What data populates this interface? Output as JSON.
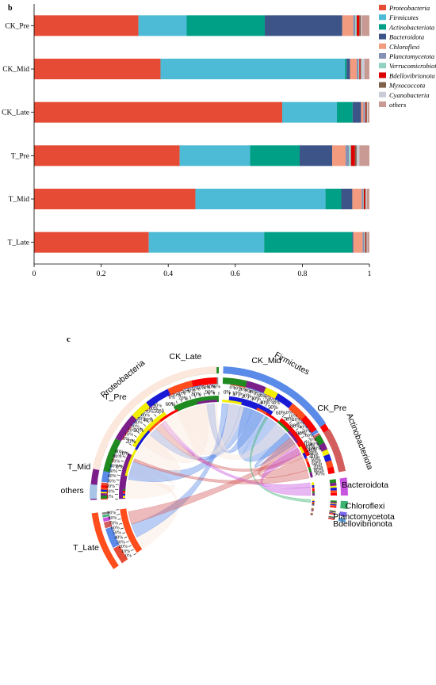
{
  "chart_data": [
    {
      "panel_label": "b",
      "type": "bar",
      "orientation": "horizontal",
      "stacked": true,
      "categories": [
        "CK_Pre",
        "CK_Mid",
        "CK_Late",
        "T_Pre",
        "T_Mid",
        "T_Late"
      ],
      "xlim": [
        0,
        1
      ],
      "xticks": [
        "0",
        "0.2",
        "0.4",
        "0.6",
        "0.8",
        "1"
      ],
      "grid": false,
      "legend_position": "right",
      "series": [
        {
          "name": "Proteobacteria",
          "color": "#e64b35",
          "values": [
            0.311,
            0.377,
            0.74,
            0.434,
            0.481,
            0.342
          ]
        },
        {
          "name": "Firmicutes",
          "color": "#4dbbd5",
          "values": [
            0.144,
            0.55,
            0.163,
            0.21,
            0.388,
            0.344
          ]
        },
        {
          "name": "Actinobacteriota",
          "color": "#00a087",
          "values": [
            0.233,
            0.005,
            0.047,
            0.148,
            0.047,
            0.263
          ]
        },
        {
          "name": "Bacteroidota",
          "color": "#3c5488",
          "values": [
            0.231,
            0.01,
            0.025,
            0.097,
            0.033,
            0.003
          ]
        },
        {
          "name": "Chloroflexi",
          "color": "#f39b7f",
          "values": [
            0.033,
            0.02,
            0.007,
            0.04,
            0.028,
            0.028
          ]
        },
        {
          "name": "Planctomycetota",
          "color": "#8491b4",
          "values": [
            0.006,
            0.005,
            0.004,
            0.01,
            0.004,
            0.004
          ]
        },
        {
          "name": "Verrucomicrobiota",
          "color": "#91d1c2",
          "values": [
            0.004,
            0.003,
            0.002,
            0.006,
            0.002,
            0.003
          ]
        },
        {
          "name": "Bdellovibrionota",
          "color": "#dc0000",
          "values": [
            0.008,
            0.003,
            0.003,
            0.012,
            0.004,
            0.003
          ]
        },
        {
          "name": "Myxococcota",
          "color": "#7e6148",
          "values": [
            0.004,
            0.002,
            0.002,
            0.005,
            0.002,
            0.002
          ]
        },
        {
          "name": "Cyanobacteria",
          "color": "#c9ccd6",
          "values": [
            0.003,
            0.01,
            0.002,
            0.008,
            0.003,
            0.002
          ]
        },
        {
          "name": "others",
          "color": "#c89a93",
          "values": [
            0.023,
            0.015,
            0.005,
            0.03,
            0.008,
            0.006
          ]
        }
      ]
    },
    {
      "panel_label": "c",
      "type": "chord",
      "sample_sectors": [
        {
          "name": "T_Late",
          "color": "#ff4d1c",
          "start": 235,
          "end": 262
        },
        {
          "name": "T_Mid",
          "color": "#7b1e8a",
          "start": 268,
          "end": 295
        },
        {
          "name": "T_Pre",
          "color": "#f2ee00",
          "start": 300,
          "end": 327
        },
        {
          "name": "CK_Late",
          "color": "#1f8a1f",
          "start": 333,
          "end": 360
        },
        {
          "name": "CK_Mid",
          "color": "#1a1ad6",
          "start": 366,
          "end": 393
        },
        {
          "name": "CK_Pre",
          "color": "#ff0000",
          "start": 399,
          "end": 426
        }
      ],
      "phylum_sectors": [
        {
          "name": "others",
          "color": "#a8c4e6",
          "start": 268.5,
          "end": 275
        },
        {
          "name": "Proteobacteria",
          "color": "#fbe7dc",
          "start": 282,
          "end": 359
        },
        {
          "name": "Firmicutes",
          "color": "#5b8be8",
          "start": 2,
          "end": 56
        },
        {
          "name": "Actinobacteriota",
          "color": "#d35c5c",
          "start": 59,
          "end": 79
        },
        {
          "name": "Bacteroidota",
          "color": "#c855e0",
          "start": 82,
          "end": 90
        },
        {
          "name": "Chloroflexi",
          "color": "#3cb371",
          "start": 92.5,
          "end": 96
        },
        {
          "name": "Planctomycetota",
          "color": "#7b68ee",
          "start": 97.5,
          "end": 99.5
        },
        {
          "name": "Bdellovibrionota",
          "color": "#5aa0e0",
          "start": 100.5,
          "end": 102
        }
      ],
      "percent_scale": [
        "0%",
        "10%",
        "20%",
        "30%",
        "40%",
        "50%",
        "60%",
        "70%",
        "80%",
        "90%"
      ]
    }
  ]
}
